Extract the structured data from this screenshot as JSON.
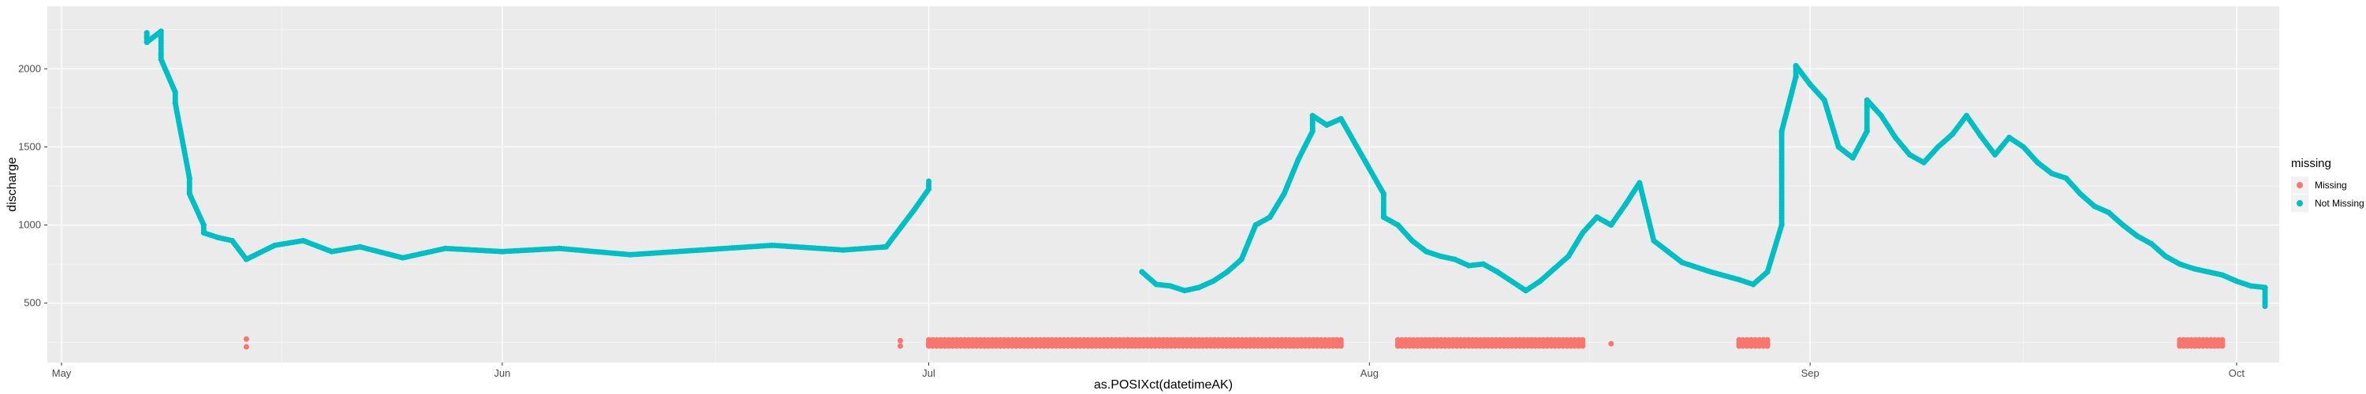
{
  "chart_data": {
    "type": "scatter",
    "xlabel": "as.POSIXct(datetimeAK)",
    "ylabel": "discharge",
    "x_ticks": [
      "May",
      "Jun",
      "Jul",
      "Aug",
      "Sep",
      "Oct"
    ],
    "x_tick_dates": [
      "2023-05-01",
      "2023-06-01",
      "2023-07-01",
      "2023-08-01",
      "2023-09-01",
      "2023-10-01"
    ],
    "xlim": [
      "2023-04-30",
      "2023-10-04"
    ],
    "y_ticks": [
      500,
      1000,
      1500,
      2000
    ],
    "ylim": [
      120,
      2400
    ],
    "grid": true,
    "legend_position": "right",
    "legend_title": "missing",
    "series": [
      {
        "name": "Missing",
        "color": "#F8766D",
        "points": [
          [
            "2023-05-14",
            270
          ],
          [
            "2023-05-14",
            220
          ],
          [
            "2023-06-29",
            260
          ],
          [
            "2023-06-29",
            225
          ],
          [
            "2023-07-01",
            235
          ],
          [
            "2023-07-05",
            240
          ],
          [
            "2023-07-10",
            238
          ],
          [
            "2023-07-15",
            240
          ],
          [
            "2023-07-20",
            236
          ],
          [
            "2023-07-25",
            240
          ],
          [
            "2023-07-29",
            238
          ],
          [
            "2023-08-03",
            240
          ],
          [
            "2023-08-04",
            235
          ],
          [
            "2023-08-05",
            240
          ],
          [
            "2023-08-08",
            238
          ],
          [
            "2023-08-12",
            240
          ],
          [
            "2023-08-15",
            235
          ],
          [
            "2023-08-18",
            240
          ],
          [
            "2023-09-27",
            236
          ],
          [
            "2023-09-28",
            240
          ],
          [
            "2023-09-29",
            234
          ]
        ],
        "spans": [
          [
            "2023-07-01",
            "2023-07-15",
            225,
            265
          ],
          [
            "2023-07-15",
            "2023-07-30",
            225,
            265
          ],
          [
            "2023-08-03",
            "2023-08-16",
            225,
            265
          ],
          [
            "2023-08-27",
            "2023-08-29",
            225,
            265
          ],
          [
            "2023-09-27",
            "2023-09-30",
            225,
            265
          ]
        ]
      },
      {
        "name": "Not Missing",
        "color": "#00BFC4",
        "points": [
          [
            "2023-05-07",
            2200
          ],
          [
            "2023-05-07",
            2230
          ],
          [
            "2023-05-07",
            2170
          ],
          [
            "2023-05-08",
            2240
          ],
          [
            "2023-05-08",
            2100
          ],
          [
            "2023-05-08",
            2060
          ],
          [
            "2023-05-09",
            1850
          ],
          [
            "2023-05-09",
            1780
          ],
          [
            "2023-05-10",
            1300
          ],
          [
            "2023-05-10",
            1200
          ],
          [
            "2023-05-11",
            1000
          ],
          [
            "2023-05-11",
            950
          ],
          [
            "2023-05-12",
            920
          ],
          [
            "2023-05-13",
            900
          ],
          [
            "2023-05-14",
            780
          ],
          [
            "2023-05-16",
            870
          ],
          [
            "2023-05-18",
            900
          ],
          [
            "2023-05-20",
            830
          ],
          [
            "2023-05-22",
            860
          ],
          [
            "2023-05-25",
            790
          ],
          [
            "2023-05-28",
            850
          ],
          [
            "2023-06-01",
            830
          ],
          [
            "2023-06-05",
            850
          ],
          [
            "2023-06-10",
            810
          ],
          [
            "2023-06-15",
            840
          ],
          [
            "2023-06-20",
            870
          ],
          [
            "2023-06-25",
            840
          ],
          [
            "2023-06-28",
            860
          ],
          [
            "2023-06-30",
            1100
          ],
          [
            "2023-07-01",
            1230
          ],
          [
            "2023-07-01",
            1280
          ],
          [
            "2023-07-16",
            700
          ],
          [
            "2023-07-17",
            620
          ],
          [
            "2023-07-18",
            610
          ],
          [
            "2023-07-19",
            580
          ],
          [
            "2023-07-20",
            600
          ],
          [
            "2023-07-21",
            640
          ],
          [
            "2023-07-22",
            700
          ],
          [
            "2023-07-23",
            780
          ],
          [
            "2023-07-24",
            1000
          ],
          [
            "2023-07-25",
            1050
          ],
          [
            "2023-07-26",
            1200
          ],
          [
            "2023-07-27",
            1420
          ],
          [
            "2023-07-28",
            1600
          ],
          [
            "2023-07-28",
            1700
          ],
          [
            "2023-07-29",
            1640
          ],
          [
            "2023-07-30",
            1680
          ],
          [
            "2023-08-02",
            1200
          ],
          [
            "2023-08-02",
            1050
          ],
          [
            "2023-08-03",
            1000
          ],
          [
            "2023-08-04",
            900
          ],
          [
            "2023-08-05",
            830
          ],
          [
            "2023-08-06",
            800
          ],
          [
            "2023-08-07",
            780
          ],
          [
            "2023-08-08",
            740
          ],
          [
            "2023-08-09",
            750
          ],
          [
            "2023-08-10",
            700
          ],
          [
            "2023-08-12",
            580
          ],
          [
            "2023-08-13",
            640
          ],
          [
            "2023-08-14",
            720
          ],
          [
            "2023-08-15",
            800
          ],
          [
            "2023-08-16",
            950
          ],
          [
            "2023-08-17",
            1050
          ],
          [
            "2023-08-18",
            1000
          ],
          [
            "2023-08-19",
            1130
          ],
          [
            "2023-08-20",
            1270
          ],
          [
            "2023-08-21",
            900
          ],
          [
            "2023-08-22",
            830
          ],
          [
            "2023-08-23",
            760
          ],
          [
            "2023-08-25",
            700
          ],
          [
            "2023-08-27",
            650
          ],
          [
            "2023-08-28",
            620
          ],
          [
            "2023-08-29",
            700
          ],
          [
            "2023-08-30",
            1000
          ],
          [
            "2023-08-30",
            1600
          ],
          [
            "2023-08-31",
            1950
          ],
          [
            "2023-08-31",
            2020
          ],
          [
            "2023-09-01",
            1900
          ],
          [
            "2023-09-02",
            1800
          ],
          [
            "2023-09-03",
            1500
          ],
          [
            "2023-09-04",
            1430
          ],
          [
            "2023-09-05",
            1600
          ],
          [
            "2023-09-05",
            1800
          ],
          [
            "2023-09-06",
            1700
          ],
          [
            "2023-09-07",
            1560
          ],
          [
            "2023-09-08",
            1450
          ],
          [
            "2023-09-09",
            1400
          ],
          [
            "2023-09-10",
            1500
          ],
          [
            "2023-09-11",
            1580
          ],
          [
            "2023-09-12",
            1700
          ],
          [
            "2023-09-13",
            1570
          ],
          [
            "2023-09-14",
            1450
          ],
          [
            "2023-09-15",
            1560
          ],
          [
            "2023-09-16",
            1500
          ],
          [
            "2023-09-17",
            1400
          ],
          [
            "2023-09-18",
            1330
          ],
          [
            "2023-09-19",
            1300
          ],
          [
            "2023-09-20",
            1200
          ],
          [
            "2023-09-21",
            1120
          ],
          [
            "2023-09-22",
            1080
          ],
          [
            "2023-09-23",
            1000
          ],
          [
            "2023-09-24",
            930
          ],
          [
            "2023-09-25",
            880
          ],
          [
            "2023-09-26",
            800
          ],
          [
            "2023-09-27",
            750
          ],
          [
            "2023-09-28",
            720
          ],
          [
            "2023-09-29",
            700
          ],
          [
            "2023-09-30",
            680
          ],
          [
            "2023-10-01",
            640
          ],
          [
            "2023-10-02",
            610
          ],
          [
            "2023-10-03",
            600
          ],
          [
            "2023-10-03",
            480
          ]
        ]
      }
    ]
  }
}
